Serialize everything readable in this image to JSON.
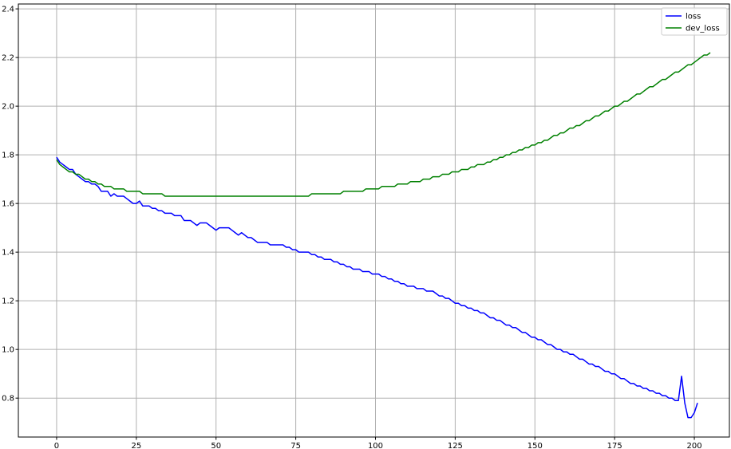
{
  "chart_data": {
    "type": "line",
    "xlim": [
      -12,
      211
    ],
    "ylim": [
      0.64,
      2.42
    ],
    "xticks": [
      0,
      25,
      50,
      75,
      100,
      125,
      150,
      175,
      200
    ],
    "yticks": [
      0.8,
      1.0,
      1.2,
      1.4,
      1.6,
      1.8,
      2.0,
      2.2,
      2.4
    ],
    "xtick_labels": [
      "0",
      "25",
      "50",
      "75",
      "100",
      "125",
      "150",
      "175",
      "200"
    ],
    "ytick_labels": [
      "0.8",
      "1.0",
      "1.2",
      "1.4",
      "1.6",
      "1.8",
      "2.0",
      "2.2",
      "2.4"
    ],
    "grid": true,
    "legend_position": "top-right",
    "series": [
      {
        "name": "loss",
        "color": "#0000ff",
        "values": [
          1.79,
          1.77,
          1.76,
          1.75,
          1.74,
          1.74,
          1.72,
          1.71,
          1.7,
          1.69,
          1.69,
          1.68,
          1.68,
          1.67,
          1.65,
          1.65,
          1.65,
          1.63,
          1.64,
          1.63,
          1.63,
          1.63,
          1.62,
          1.61,
          1.6,
          1.6,
          1.61,
          1.59,
          1.59,
          1.59,
          1.58,
          1.58,
          1.57,
          1.57,
          1.56,
          1.56,
          1.56,
          1.55,
          1.55,
          1.55,
          1.53,
          1.53,
          1.53,
          1.52,
          1.51,
          1.52,
          1.52,
          1.52,
          1.51,
          1.5,
          1.49,
          1.5,
          1.5,
          1.5,
          1.5,
          1.49,
          1.48,
          1.47,
          1.48,
          1.47,
          1.46,
          1.46,
          1.45,
          1.44,
          1.44,
          1.44,
          1.44,
          1.43,
          1.43,
          1.43,
          1.43,
          1.43,
          1.42,
          1.42,
          1.41,
          1.41,
          1.4,
          1.4,
          1.4,
          1.4,
          1.39,
          1.39,
          1.38,
          1.38,
          1.37,
          1.37,
          1.37,
          1.36,
          1.36,
          1.35,
          1.35,
          1.34,
          1.34,
          1.33,
          1.33,
          1.33,
          1.32,
          1.32,
          1.32,
          1.31,
          1.31,
          1.31,
          1.3,
          1.3,
          1.29,
          1.29,
          1.28,
          1.28,
          1.27,
          1.27,
          1.26,
          1.26,
          1.26,
          1.25,
          1.25,
          1.25,
          1.24,
          1.24,
          1.24,
          1.23,
          1.22,
          1.22,
          1.21,
          1.21,
          1.2,
          1.19,
          1.19,
          1.18,
          1.18,
          1.17,
          1.17,
          1.16,
          1.16,
          1.15,
          1.15,
          1.14,
          1.13,
          1.13,
          1.12,
          1.12,
          1.11,
          1.1,
          1.1,
          1.09,
          1.09,
          1.08,
          1.07,
          1.07,
          1.06,
          1.05,
          1.05,
          1.04,
          1.04,
          1.03,
          1.02,
          1.02,
          1.01,
          1.0,
          1.0,
          0.99,
          0.99,
          0.98,
          0.98,
          0.97,
          0.96,
          0.96,
          0.95,
          0.94,
          0.94,
          0.93,
          0.93,
          0.92,
          0.91,
          0.91,
          0.9,
          0.9,
          0.89,
          0.88,
          0.88,
          0.87,
          0.86,
          0.86,
          0.85,
          0.85,
          0.84,
          0.84,
          0.83,
          0.83,
          0.82,
          0.82,
          0.81,
          0.81,
          0.8,
          0.8,
          0.79,
          0.79,
          0.89,
          0.78,
          0.72,
          0.72,
          0.74,
          0.78
        ]
      },
      {
        "name": "dev_loss",
        "color": "#008000",
        "values": [
          1.78,
          1.76,
          1.75,
          1.74,
          1.73,
          1.73,
          1.72,
          1.72,
          1.71,
          1.7,
          1.7,
          1.69,
          1.69,
          1.68,
          1.68,
          1.67,
          1.67,
          1.67,
          1.66,
          1.66,
          1.66,
          1.66,
          1.65,
          1.65,
          1.65,
          1.65,
          1.65,
          1.64,
          1.64,
          1.64,
          1.64,
          1.64,
          1.64,
          1.64,
          1.63,
          1.63,
          1.63,
          1.63,
          1.63,
          1.63,
          1.63,
          1.63,
          1.63,
          1.63,
          1.63,
          1.63,
          1.63,
          1.63,
          1.63,
          1.63,
          1.63,
          1.63,
          1.63,
          1.63,
          1.63,
          1.63,
          1.63,
          1.63,
          1.63,
          1.63,
          1.63,
          1.63,
          1.63,
          1.63,
          1.63,
          1.63,
          1.63,
          1.63,
          1.63,
          1.63,
          1.63,
          1.63,
          1.63,
          1.63,
          1.63,
          1.63,
          1.63,
          1.63,
          1.63,
          1.63,
          1.64,
          1.64,
          1.64,
          1.64,
          1.64,
          1.64,
          1.64,
          1.64,
          1.64,
          1.64,
          1.65,
          1.65,
          1.65,
          1.65,
          1.65,
          1.65,
          1.65,
          1.66,
          1.66,
          1.66,
          1.66,
          1.66,
          1.67,
          1.67,
          1.67,
          1.67,
          1.67,
          1.68,
          1.68,
          1.68,
          1.68,
          1.69,
          1.69,
          1.69,
          1.69,
          1.7,
          1.7,
          1.7,
          1.71,
          1.71,
          1.71,
          1.72,
          1.72,
          1.72,
          1.73,
          1.73,
          1.73,
          1.74,
          1.74,
          1.74,
          1.75,
          1.75,
          1.76,
          1.76,
          1.76,
          1.77,
          1.77,
          1.78,
          1.78,
          1.79,
          1.79,
          1.8,
          1.8,
          1.81,
          1.81,
          1.82,
          1.82,
          1.83,
          1.83,
          1.84,
          1.84,
          1.85,
          1.85,
          1.86,
          1.86,
          1.87,
          1.88,
          1.88,
          1.89,
          1.89,
          1.9,
          1.91,
          1.91,
          1.92,
          1.92,
          1.93,
          1.94,
          1.94,
          1.95,
          1.96,
          1.96,
          1.97,
          1.98,
          1.98,
          1.99,
          2.0,
          2.0,
          2.01,
          2.02,
          2.02,
          2.03,
          2.04,
          2.05,
          2.05,
          2.06,
          2.07,
          2.08,
          2.08,
          2.09,
          2.1,
          2.11,
          2.11,
          2.12,
          2.13,
          2.14,
          2.14,
          2.15,
          2.16,
          2.17,
          2.17,
          2.18,
          2.19,
          2.2,
          2.21,
          2.21,
          2.22
        ]
      }
    ]
  }
}
